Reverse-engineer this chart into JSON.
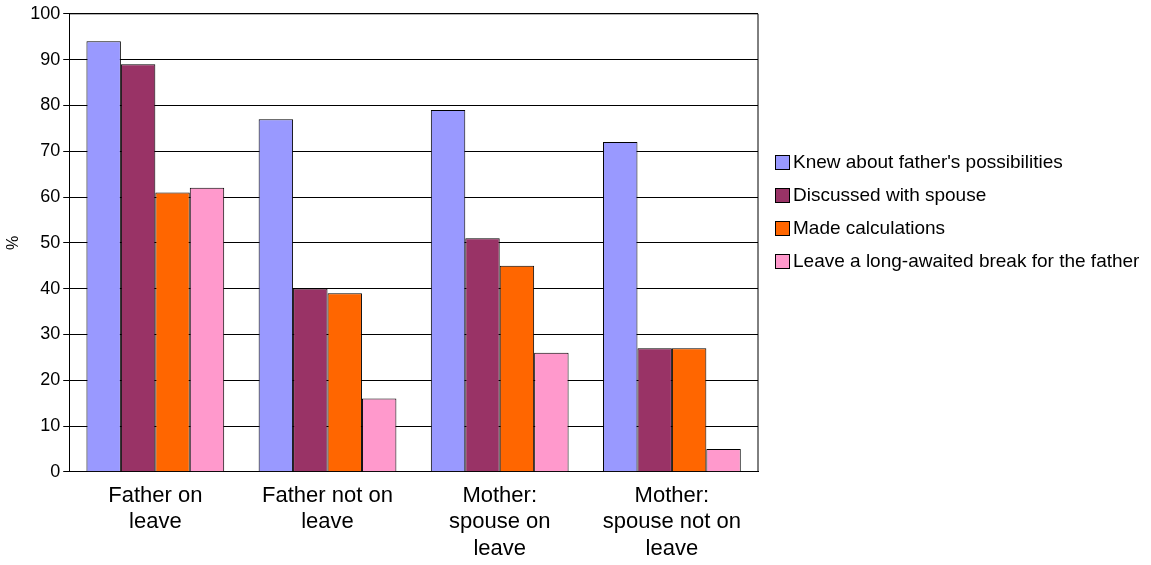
{
  "chart_data": {
    "type": "bar",
    "ylabel": "%",
    "categories": [
      "Father on leave",
      "Father not on leave",
      "Mother: spouse on leave",
      "Mother: spouse not on leave"
    ],
    "series": [
      {
        "name": "Knew about father's possibilities",
        "color": "#9999ff",
        "values": [
          94,
          77,
          79,
          72
        ]
      },
      {
        "name": "Discussed with spouse",
        "color": "#993366",
        "values": [
          89,
          40,
          51,
          27
        ]
      },
      {
        "name": "Made calculations",
        "color": "#ff6600",
        "values": [
          61,
          39,
          45,
          27
        ]
      },
      {
        "name": "Leave a long-awaited break for the father",
        "color": "#ff99cc",
        "values": [
          62,
          16,
          26,
          5
        ]
      }
    ],
    "ylim": [
      0,
      100
    ],
    "yticks": [
      0,
      10,
      20,
      30,
      40,
      50,
      60,
      70,
      80,
      90,
      100
    ],
    "grid": "y",
    "legend": "right"
  }
}
